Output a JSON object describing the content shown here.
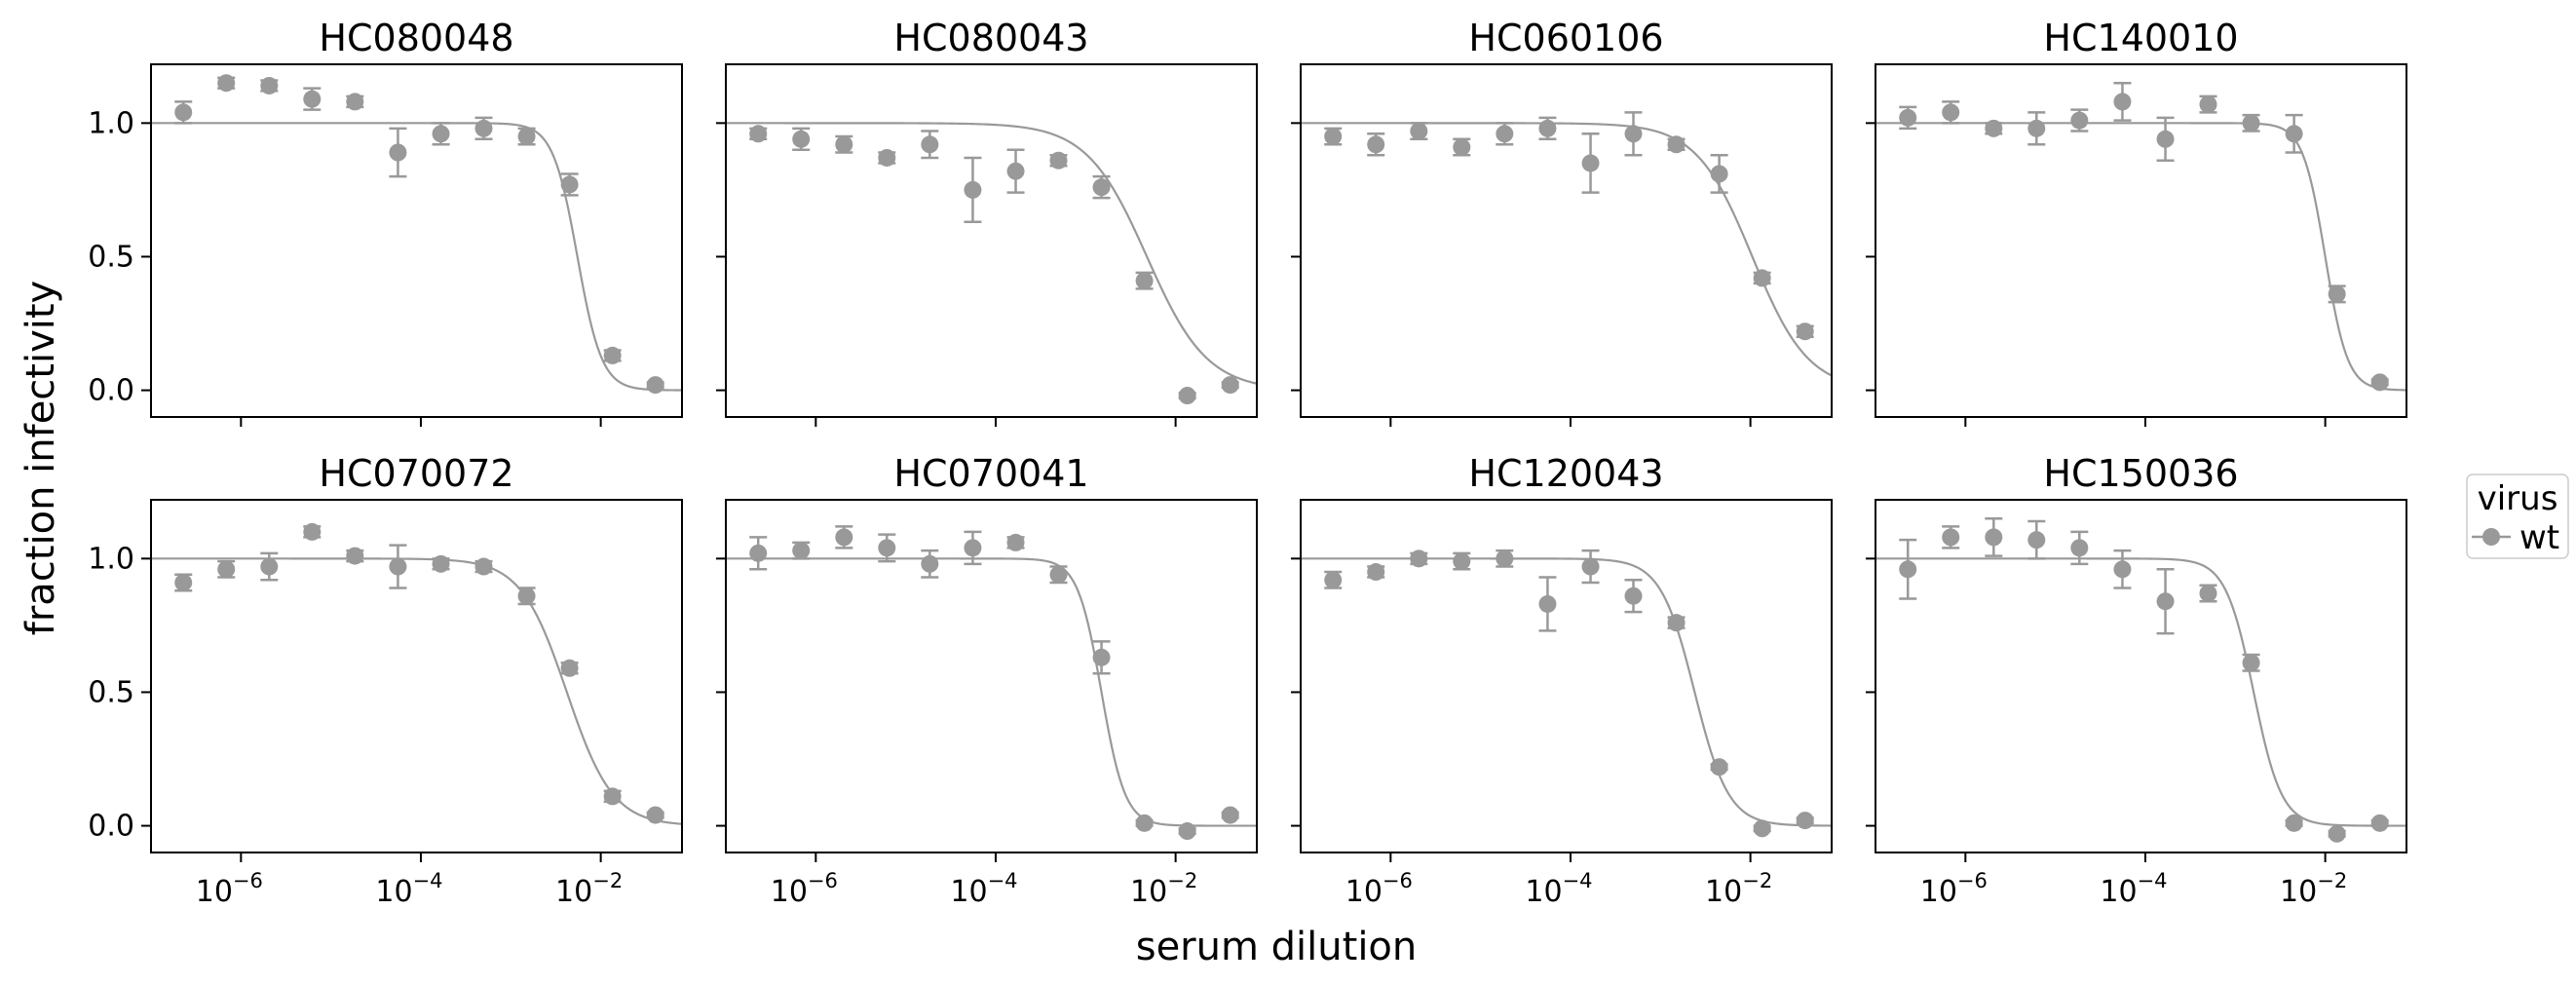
{
  "chart_data": {
    "type": "scatter",
    "figure": {
      "ylabel": "fraction infectivity",
      "xlabel": "serum dilution",
      "xscale": "log",
      "xlim": [
        1e-07,
        0.08
      ],
      "ylim": [
        -0.1,
        1.22
      ],
      "yticks": [
        0.0,
        0.5,
        1.0
      ],
      "ytick_labels": [
        "0.0",
        "0.5",
        "1.0"
      ],
      "xticks": [
        1e-06,
        0.0001,
        0.01
      ],
      "xtick_bases": [
        "10",
        "10",
        "10"
      ],
      "xtick_exponents": [
        "−6",
        "−4",
        "−2"
      ],
      "grid": false,
      "sharex": true,
      "sharey": true,
      "layout": "2 rows x 4 columns"
    },
    "legend": {
      "title": "virus",
      "entries": [
        "wt"
      ],
      "placement": "right-outside"
    },
    "series_color": "#999999",
    "dilutions": [
      2.29e-07,
      6.86e-07,
      2.06e-06,
      6.17e-06,
      1.85e-05,
      5.56e-05,
      0.000167,
      0.0005,
      0.0015,
      0.0045,
      0.0135,
      0.0405
    ],
    "panels": [
      {
        "title": "HC080048",
        "series": [
          {
            "name": "wt",
            "y": [
              1.04,
              1.15,
              1.14,
              1.09,
              1.08,
              0.89,
              0.96,
              0.98,
              0.95,
              0.77,
              0.13,
              0.02
            ],
            "err": [
              0.04,
              0.02,
              0.02,
              0.04,
              0.02,
              0.09,
              0.04,
              0.04,
              0.03,
              0.04,
              0.02,
              0.01
            ]
          }
        ],
        "fit": {
          "ic50": 0.0055,
          "hill": 3.2
        }
      },
      {
        "title": "HC080043",
        "series": [
          {
            "name": "wt",
            "y": [
              0.96,
              0.94,
              0.92,
              0.87,
              0.92,
              0.75,
              0.82,
              0.86,
              0.76,
              0.41,
              -0.02,
              0.02
            ],
            "err": [
              0.02,
              0.04,
              0.03,
              0.02,
              0.05,
              0.12,
              0.08,
              0.02,
              0.04,
              0.03,
              0.01,
              0.01
            ]
          }
        ],
        "fit": {
          "ic50": 0.0048,
          "hill": 1.3
        }
      },
      {
        "title": "HC060106",
        "series": [
          {
            "name": "wt",
            "y": [
              0.95,
              0.92,
              0.97,
              0.91,
              0.96,
              0.98,
              0.85,
              0.96,
              0.92,
              0.81,
              0.42,
              0.22
            ],
            "err": [
              0.03,
              0.04,
              0.03,
              0.03,
              0.04,
              0.04,
              0.11,
              0.08,
              0.02,
              0.07,
              0.02,
              0.02
            ]
          }
        ],
        "fit": {
          "ic50": 0.0105,
          "hill": 1.4
        }
      },
      {
        "title": "HC140010",
        "series": [
          {
            "name": "wt",
            "y": [
              1.02,
              1.04,
              0.98,
              0.98,
              1.01,
              1.08,
              0.94,
              1.07,
              1.0,
              0.96,
              0.36,
              0.03
            ],
            "err": [
              0.04,
              0.04,
              0.02,
              0.06,
              0.04,
              0.07,
              0.08,
              0.03,
              0.03,
              0.07,
              0.03,
              0.01
            ]
          }
        ],
        "fit": {
          "ic50": 0.01,
          "hill": 3.5
        }
      },
      {
        "title": "HC070072",
        "series": [
          {
            "name": "wt",
            "y": [
              0.91,
              0.96,
              0.97,
              1.1,
              1.01,
              0.97,
              0.98,
              0.97,
              0.86,
              0.59,
              0.11,
              0.04
            ],
            "err": [
              0.03,
              0.03,
              0.05,
              0.02,
              0.02,
              0.08,
              0.02,
              0.02,
              0.03,
              0.02,
              0.02,
              0.01
            ]
          }
        ],
        "fit": {
          "ic50": 0.0042,
          "hill": 1.7
        }
      },
      {
        "title": "HC070041",
        "series": [
          {
            "name": "wt",
            "y": [
              1.02,
              1.03,
              1.08,
              1.04,
              0.98,
              1.04,
              1.06,
              0.94,
              0.63,
              0.01,
              -0.02,
              0.04
            ],
            "err": [
              0.06,
              0.03,
              0.04,
              0.05,
              0.05,
              0.06,
              0.02,
              0.03,
              0.06,
              0.01,
              0.01,
              0.01
            ]
          }
        ],
        "fit": {
          "ic50": 0.0015,
          "hill": 3.3
        }
      },
      {
        "title": "HC120043",
        "series": [
          {
            "name": "wt",
            "y": [
              0.92,
              0.95,
              1.0,
              0.99,
              1.0,
              0.83,
              0.97,
              0.86,
              0.76,
              0.22,
              -0.01,
              0.02
            ],
            "err": [
              0.03,
              0.02,
              0.02,
              0.03,
              0.03,
              0.1,
              0.06,
              0.06,
              0.02,
              0.01,
              0.01,
              0.01
            ]
          }
        ],
        "fit": {
          "ic50": 0.0024,
          "hill": 2.3
        }
      },
      {
        "title": "HC150036",
        "series": [
          {
            "name": "wt",
            "y": [
              0.96,
              1.08,
              1.08,
              1.07,
              1.04,
              0.96,
              0.84,
              0.87,
              0.61,
              0.01,
              -0.03,
              0.01
            ],
            "err": [
              0.11,
              0.04,
              0.07,
              0.07,
              0.06,
              0.07,
              0.12,
              0.03,
              0.03,
              0.01,
              0.01,
              0.01
            ]
          }
        ],
        "fit": {
          "ic50": 0.0016,
          "hill": 2.8
        }
      }
    ]
  }
}
